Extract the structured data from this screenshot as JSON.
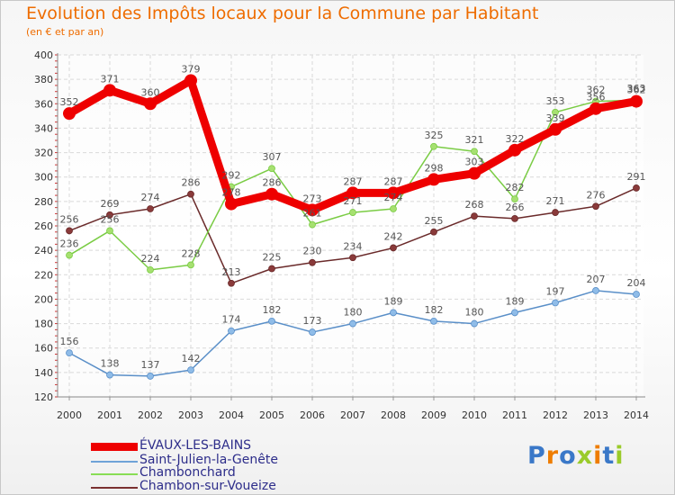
{
  "title": "Evolution des Impôts locaux pour la Commune par Habitant",
  "subtitle": "(en € et par an)",
  "logo": "Proxiti",
  "chart_data": {
    "type": "line",
    "title": "Evolution des Impôts locaux pour la Commune par Habitant",
    "ylabel": "(en € et par an)",
    "xlabel": "",
    "x": [
      "2000",
      "2001",
      "2002",
      "2003",
      "2004",
      "2005",
      "2006",
      "2007",
      "2008",
      "2009",
      "2010",
      "2011",
      "2012",
      "2013",
      "2014"
    ],
    "ylim": [
      120,
      400
    ],
    "yticks": [
      "120",
      "140",
      "160",
      "180",
      "200",
      "220",
      "240",
      "260",
      "280",
      "300",
      "320",
      "340",
      "360",
      "380",
      "400"
    ],
    "grid": true,
    "legend_position": "bottom-left",
    "series": [
      {
        "name": "ÉVAUX-LES-BAINS",
        "color": "#ee0000",
        "values": [
          352,
          371,
          360,
          379,
          278,
          286,
          273,
          287,
          287,
          298,
          303,
          322,
          339,
          356,
          362
        ]
      },
      {
        "name": "Saint-Julien-la-Genête",
        "color": "#6fa3d8",
        "values": [
          156,
          138,
          137,
          142,
          174,
          182,
          173,
          180,
          189,
          182,
          180,
          189,
          197,
          207,
          204
        ]
      },
      {
        "name": "Chambonchard",
        "color": "#88dd55",
        "values": [
          236,
          256,
          224,
          228,
          292,
          307,
          261,
          271,
          274,
          325,
          321,
          282,
          353,
          362,
          363
        ]
      },
      {
        "name": "Chambon-sur-Voueize",
        "color": "#7a3030",
        "values": [
          256,
          269,
          274,
          286,
          213,
          225,
          230,
          234,
          242,
          255,
          268,
          266,
          271,
          276,
          291
        ]
      }
    ]
  }
}
